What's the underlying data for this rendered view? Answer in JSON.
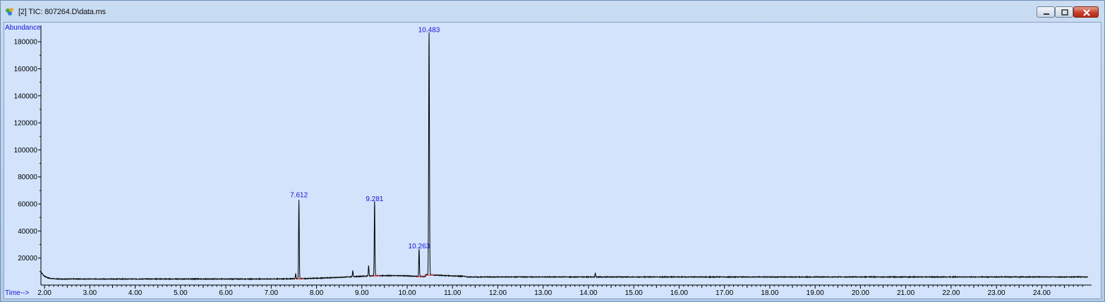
{
  "window": {
    "title": "[2] TIC: 807264.D\\data.ms",
    "buttons": [
      "minimize",
      "maximize",
      "close"
    ]
  },
  "chart_data": {
    "type": "line",
    "ylabel": "Abundance",
    "xlabel": "Time-->",
    "xlim": [
      1.92,
      25.1
    ],
    "ylim": [
      0,
      190000
    ],
    "x_ticks": [
      "2.00",
      "3.00",
      "4.00",
      "5.00",
      "6.00",
      "7.00",
      "8.00",
      "9.00",
      "10.00",
      "11.00",
      "12.00",
      "13.00",
      "14.00",
      "15.00",
      "16.00",
      "17.00",
      "18.00",
      "19.00",
      "20.00",
      "21.00",
      "22.00",
      "23.00",
      "24.00"
    ],
    "y_ticks": [
      "20000",
      "40000",
      "60000",
      "80000",
      "100000",
      "120000",
      "140000",
      "160000",
      "180000"
    ],
    "baseline": 6000,
    "peaks": [
      {
        "time": 7.612,
        "label": "7.612",
        "abundance": 63000
      },
      {
        "time": 9.281,
        "label": "9.281",
        "abundance": 60000
      },
      {
        "time": 10.263,
        "label": "10.263",
        "abundance": 25000
      },
      {
        "time": 10.483,
        "label": "10.483",
        "abundance": 185000
      }
    ],
    "minor_peaks": [
      {
        "time": 7.54,
        "abundance": 8000
      },
      {
        "time": 8.8,
        "abundance": 9000
      },
      {
        "time": 9.15,
        "abundance": 12000
      },
      {
        "time": 14.15,
        "abundance": 7500
      }
    ],
    "series_color": "#000000",
    "label_color": "#1414d8",
    "integration_color": "#e02020"
  }
}
